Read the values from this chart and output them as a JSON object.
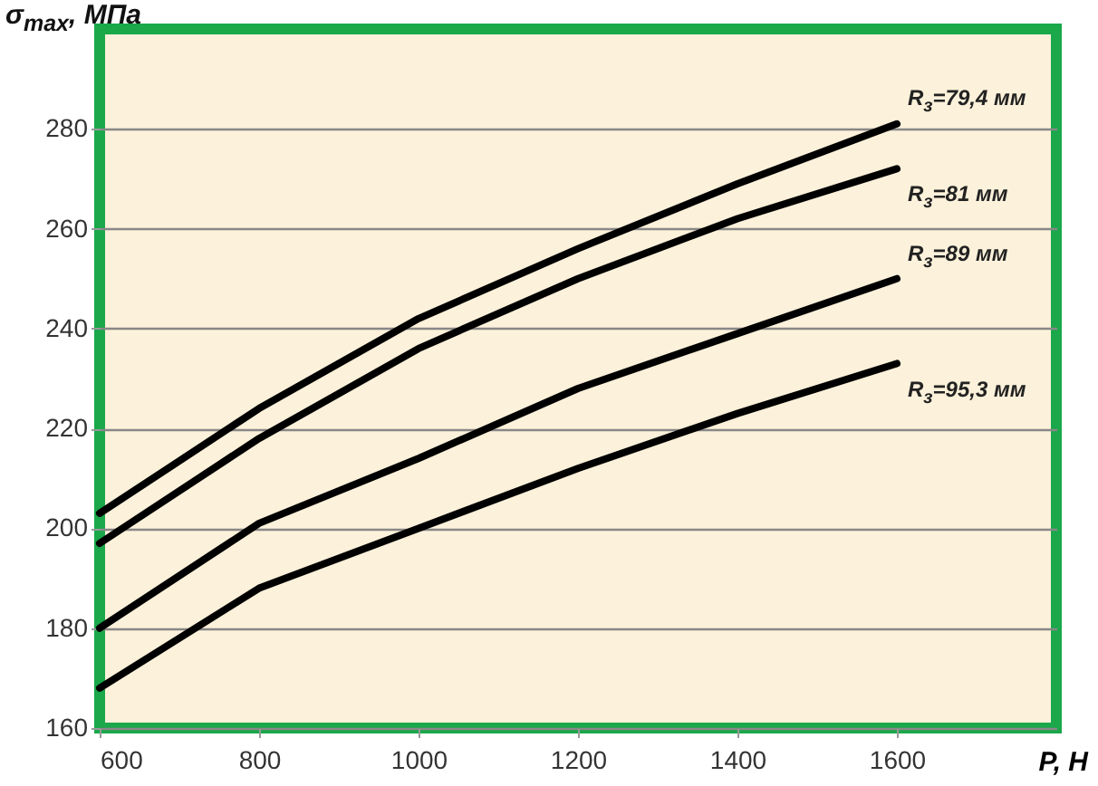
{
  "chart_data": {
    "type": "line",
    "xlabel": "P, Н",
    "ylabel": "σ$_{max}$, МПа",
    "x": [
      600,
      800,
      1000,
      1200,
      1400,
      1600
    ],
    "series": [
      {
        "name": "R$_{з}$=79,4 мм",
        "color": "#000000",
        "values": [
          203,
          224,
          242,
          256,
          269,
          281
        ]
      },
      {
        "name": "R$_{з}$=81 мм",
        "color": "#000000",
        "values": [
          197,
          218,
          236,
          250,
          262,
          272
        ]
      },
      {
        "name": "R$_{з}$=89 мм",
        "color": "#000000",
        "values": [
          180,
          201,
          214,
          228,
          239,
          250
        ]
      },
      {
        "name": "R$_{з}$=95,3 мм",
        "color": "#000000",
        "values": [
          168,
          188,
          200,
          212,
          223,
          233
        ]
      }
    ],
    "xlim": [
      600,
      1800
    ],
    "xticks": [
      600,
      800,
      1000,
      1200,
      1400,
      1600
    ],
    "ylim": [
      160,
      300
    ],
    "yticks": [
      160,
      180,
      200,
      220,
      240,
      260,
      280
    ],
    "grid": "y",
    "marker": "none",
    "line_style": "solid"
  }
}
